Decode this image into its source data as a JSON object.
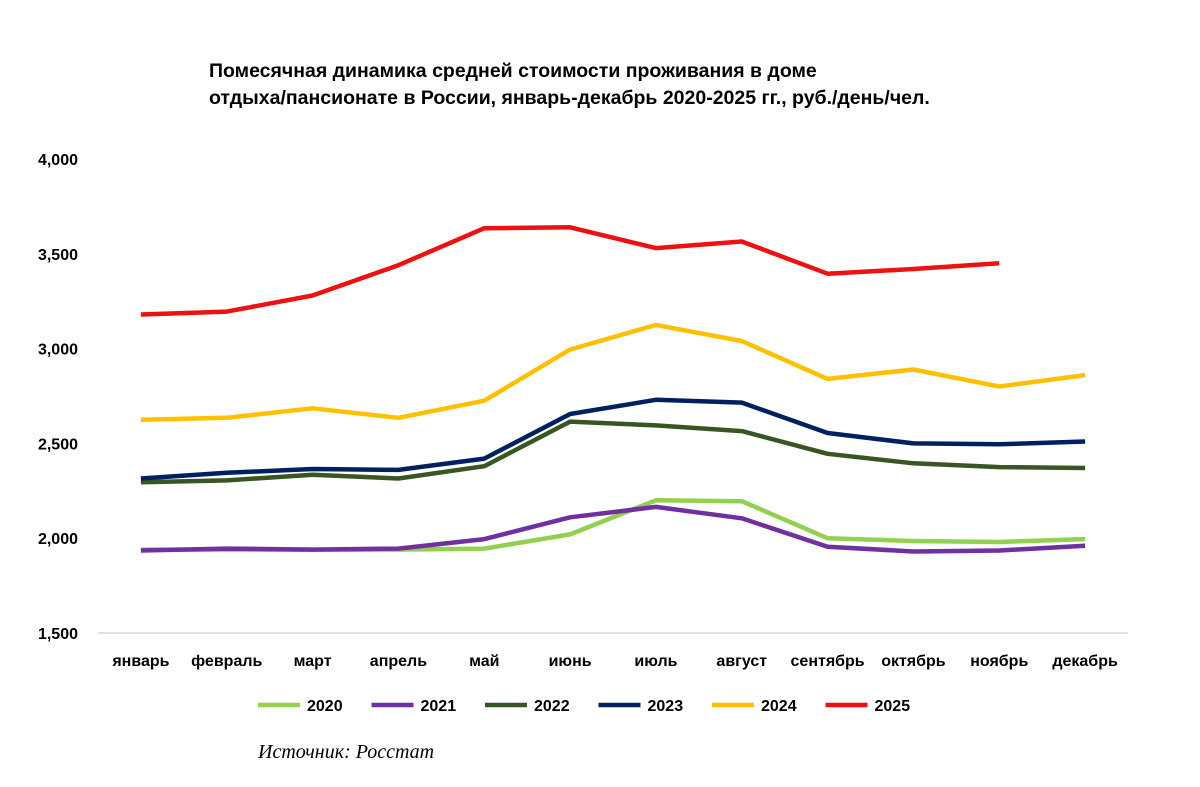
{
  "chart_data": {
    "type": "line",
    "title_lines": [
      "Помесячная динамика средней стоимости проживания в доме",
      "отдыха/пансионате в России, январь-декабрь 2020-2025 гг., руб./день/чел."
    ],
    "categories": [
      "январь",
      "февраль",
      "март",
      "апрель",
      "май",
      "июнь",
      "июль",
      "август",
      "сентябрь",
      "октябрь",
      "ноябрь",
      "декабрь"
    ],
    "ylim": [
      1500,
      4000
    ],
    "yticks": [
      1500,
      2000,
      2500,
      3000,
      3500,
      4000
    ],
    "ytick_labels": [
      "1,500",
      "2,000",
      "2,500",
      "3,000",
      "3,500",
      "4,000"
    ],
    "legend_position": "bottom",
    "series": [
      {
        "name": "2020",
        "color": "#92D050",
        "values": [
          1940,
          1940,
          1940,
          1940,
          1945,
          2020,
          2200,
          2195,
          2000,
          1985,
          1980,
          1995
        ]
      },
      {
        "name": "2021",
        "color": "#7030A0",
        "values": [
          1935,
          1945,
          1940,
          1945,
          1995,
          2110,
          2165,
          2105,
          1955,
          1930,
          1935,
          1960
        ]
      },
      {
        "name": "2022",
        "color": "#375623",
        "values": [
          2295,
          2305,
          2335,
          2315,
          2380,
          2615,
          2595,
          2565,
          2445,
          2395,
          2375,
          2370
        ]
      },
      {
        "name": "2023",
        "color": "#002060",
        "values": [
          2315,
          2345,
          2365,
          2360,
          2420,
          2655,
          2730,
          2715,
          2555,
          2500,
          2495,
          2510
        ]
      },
      {
        "name": "2024",
        "color": "#FFC000",
        "values": [
          2625,
          2635,
          2685,
          2635,
          2725,
          2995,
          3125,
          3040,
          2840,
          2890,
          2800,
          2860
        ]
      },
      {
        "name": "2025",
        "color": "#EE1111",
        "values": [
          3180,
          3195,
          3280,
          3440,
          3635,
          3640,
          3530,
          3565,
          3395,
          3420,
          3450,
          null
        ]
      }
    ]
  },
  "source": "Источник: Росстат"
}
